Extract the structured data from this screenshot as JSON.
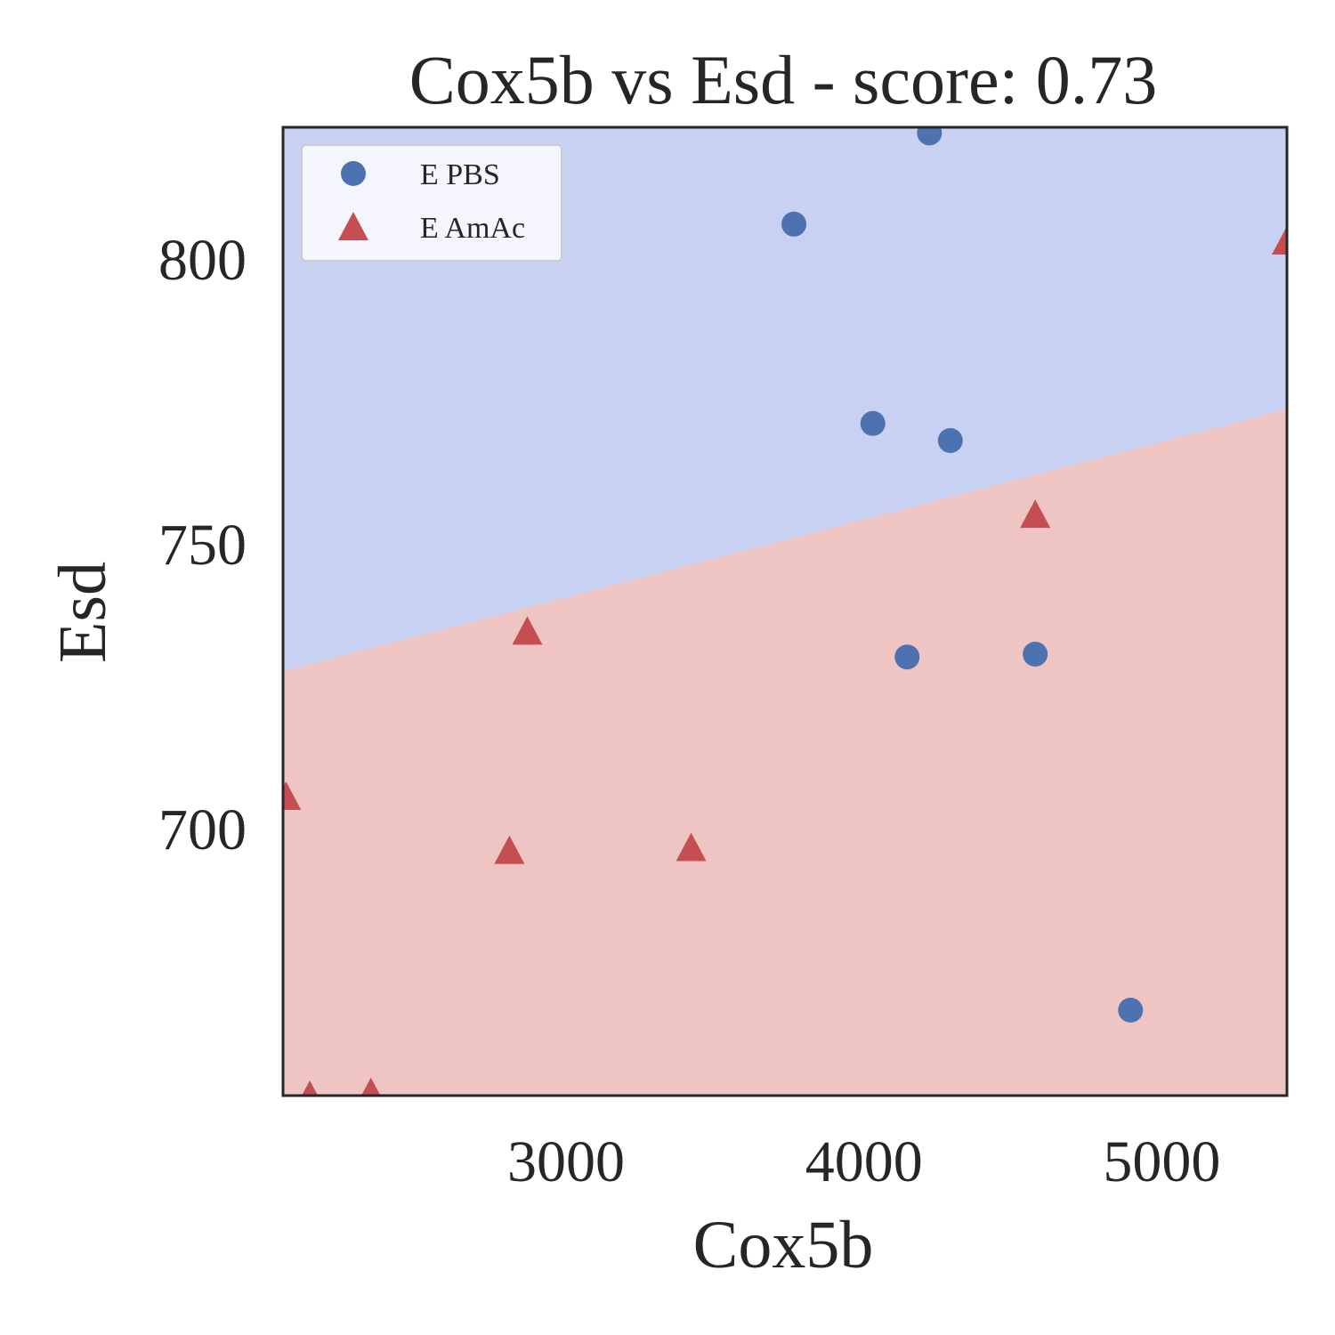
{
  "chart_data": {
    "type": "scatter",
    "title": "Cox5b vs Esd - score: 0.73",
    "xlabel": "Cox5b",
    "ylabel": "Esd",
    "xlim": [
      2050,
      5420
    ],
    "ylim": [
      653,
      823
    ],
    "xticks": [
      3000,
      4000,
      5000
    ],
    "yticks": [
      700,
      750,
      800
    ],
    "grid": false,
    "legend_position": "top-left",
    "decision_boundary": {
      "x": [
        2050,
        5420
      ],
      "y": [
        727.5,
        773.5
      ],
      "upper_class": "E PBS",
      "lower_class": "E AmAc",
      "upper_color": "#c8d1f2",
      "lower_color": "#efc5c4"
    },
    "series": [
      {
        "name": "E PBS",
        "marker": "circle",
        "color": "#4c72b0",
        "points": [
          {
            "x": 4220,
            "y": 822
          },
          {
            "x": 3765,
            "y": 806
          },
          {
            "x": 4030,
            "y": 771
          },
          {
            "x": 4290,
            "y": 768
          },
          {
            "x": 4145,
            "y": 730
          },
          {
            "x": 4575,
            "y": 730.5
          },
          {
            "x": 4895,
            "y": 668
          }
        ]
      },
      {
        "name": "E AmAc",
        "marker": "triangle",
        "color": "#c44e52",
        "points": [
          {
            "x": 5420,
            "y": 803
          },
          {
            "x": 4575,
            "y": 755
          },
          {
            "x": 2870,
            "y": 734.5
          },
          {
            "x": 2060,
            "y": 705.5
          },
          {
            "x": 2810,
            "y": 696
          },
          {
            "x": 3420,
            "y": 696.5
          },
          {
            "x": 2140,
            "y": 653
          },
          {
            "x": 2345,
            "y": 653.5
          }
        ]
      }
    ]
  }
}
